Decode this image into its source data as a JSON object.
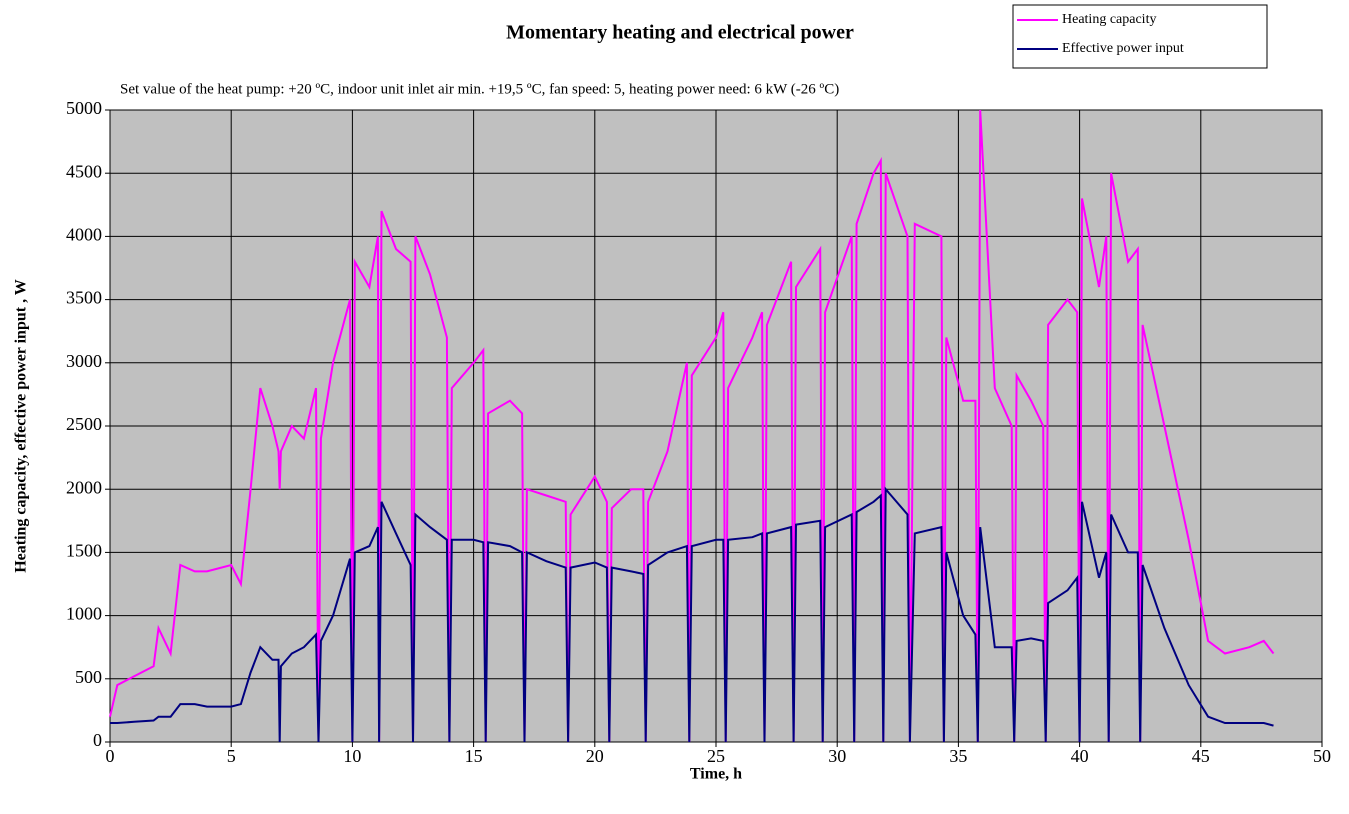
{
  "chart_data": {
    "type": "line",
    "title": "Momentary heating and electrical power",
    "subtitle": "Set value of the heat pump: +20 ºC,  indoor unit inlet air min. +19,5 ºC, fan speed: 5, heating power need: 6 kW (-26 ºC)",
    "x_label": "Time, h",
    "y_label": "Heating capacity, effective power input  , W",
    "x": [
      0,
      0.3,
      1,
      1.8,
      2,
      2.5,
      2.9,
      3.5,
      4,
      5,
      5.4,
      5.8,
      6.2,
      6.7,
      6.95,
      7.0,
      7.05,
      7.5,
      8.0,
      8.5,
      8.6,
      8.7,
      9.2,
      9.9,
      10.0,
      10.1,
      10.7,
      11.05,
      11.1,
      11.2,
      11.8,
      12.4,
      12.5,
      12.6,
      13.2,
      13.9,
      14.0,
      14.1,
      15,
      15.4,
      15.5,
      15.6,
      16.5,
      17.0,
      17.1,
      17.2,
      18,
      18.8,
      18.9,
      19.0,
      20,
      20.5,
      20.6,
      20.7,
      21.5,
      22.0,
      22.1,
      22.2,
      23,
      23.8,
      23.9,
      24.0,
      25,
      25.3,
      25.4,
      25.5,
      26.5,
      26.9,
      27.0,
      27.1,
      28.1,
      28.2,
      28.3,
      29.3,
      29.4,
      29.5,
      30.6,
      30.7,
      30.8,
      31.5,
      31.8,
      31.9,
      32.0,
      32.9,
      33.0,
      33.2,
      34.3,
      34.4,
      34.5,
      35.2,
      35.7,
      35.8,
      35.9,
      36.5,
      37.2,
      37.3,
      37.4,
      38.0,
      38.5,
      38.6,
      38.7,
      39.5,
      39.9,
      40.0,
      40.1,
      40.8,
      41.1,
      41.2,
      41.3,
      42.0,
      42.4,
      42.5,
      42.6,
      43.5,
      44.5,
      45.3,
      46,
      47,
      47.6,
      48
    ],
    "series": [
      {
        "name": "Heating capacity",
        "color": "#ff00ff",
        "values": [
          200,
          450,
          520,
          600,
          900,
          700,
          1400,
          1350,
          1350,
          1400,
          1250,
          2000,
          2800,
          2500,
          2300,
          2000,
          2300,
          2500,
          2400,
          2800,
          0,
          2400,
          3000,
          3500,
          0,
          3800,
          3600,
          4000,
          0,
          4200,
          3900,
          3800,
          0,
          4000,
          3700,
          3200,
          0,
          2800,
          3000,
          3100,
          0,
          2600,
          2700,
          2600,
          0,
          2000,
          1950,
          1900,
          0,
          1800,
          2100,
          1900,
          0,
          1850,
          2000,
          2000,
          0,
          1900,
          2300,
          3000,
          0,
          2900,
          3200,
          3400,
          0,
          2800,
          3200,
          3400,
          0,
          3300,
          3800,
          0,
          3600,
          3900,
          0,
          3400,
          4000,
          0,
          4100,
          4500,
          4600,
          0,
          4500,
          4000,
          0,
          4100,
          4000,
          0,
          3200,
          2700,
          2700,
          0,
          5000,
          2800,
          2500,
          0,
          2900,
          2700,
          2500,
          0,
          3300,
          3500,
          3400,
          0,
          4300,
          3600,
          4000,
          0,
          4500,
          3800,
          3900,
          0,
          3300,
          2500,
          1600,
          800,
          700,
          750,
          800,
          700
        ]
      },
      {
        "name": "Effective power input",
        "color": "#000080",
        "values": [
          150,
          150,
          160,
          170,
          200,
          200,
          300,
          300,
          280,
          280,
          300,
          550,
          750,
          650,
          650,
          0,
          600,
          700,
          750,
          850,
          0,
          800,
          1000,
          1450,
          0,
          1500,
          1550,
          1700,
          0,
          1900,
          1650,
          1400,
          0,
          1800,
          1700,
          1600,
          0,
          1600,
          1600,
          1580,
          0,
          1580,
          1550,
          1500,
          0,
          1500,
          1430,
          1380,
          0,
          1380,
          1420,
          1380,
          0,
          1380,
          1350,
          1330,
          0,
          1400,
          1500,
          1550,
          0,
          1550,
          1600,
          1600,
          0,
          1600,
          1620,
          1650,
          0,
          1650,
          1700,
          0,
          1720,
          1750,
          0,
          1700,
          1800,
          0,
          1820,
          1900,
          1950,
          0,
          2000,
          1800,
          0,
          1650,
          1700,
          0,
          1500,
          1000,
          850,
          0,
          1700,
          750,
          750,
          0,
          800,
          820,
          800,
          0,
          1100,
          1200,
          1300,
          0,
          1900,
          1300,
          1500,
          0,
          1800,
          1500,
          1500,
          0,
          1400,
          900,
          450,
          200,
          150,
          150,
          150,
          130
        ]
      }
    ],
    "xlim": [
      0,
      50
    ],
    "xticks": [
      0,
      5,
      10,
      15,
      20,
      25,
      30,
      35,
      40,
      45,
      50
    ],
    "ylim": [
      0,
      5000
    ],
    "yticks": [
      0,
      500,
      1000,
      1500,
      2000,
      2500,
      3000,
      3500,
      4000,
      4500,
      5000
    ],
    "grid": true,
    "legend": "top right"
  }
}
